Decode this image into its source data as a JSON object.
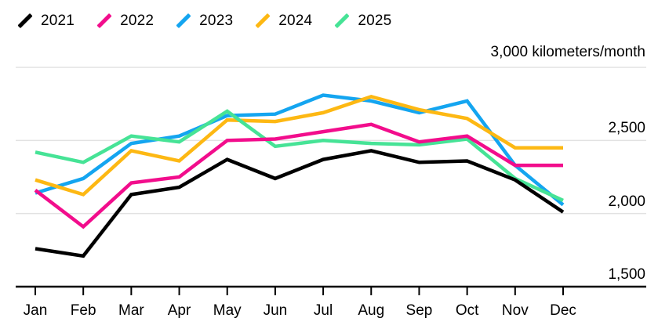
{
  "chart_data": {
    "type": "line",
    "title": "",
    "y_top_label": "3,000 kilometers/month",
    "y_tick_labels": [
      "2,500",
      "2,000",
      "1,500"
    ],
    "y_axis": {
      "min": 1500,
      "max": 3000,
      "gridline_values": [
        3000,
        2500,
        2000,
        1500
      ],
      "grid_on": true
    },
    "legend_position": "top-left",
    "categories": [
      "Jan",
      "Feb",
      "Mar",
      "Apr",
      "May",
      "Jun",
      "Jul",
      "Aug",
      "Sep",
      "Oct",
      "Nov",
      "Dec"
    ],
    "series": [
      {
        "name": "2021",
        "color": "#000000",
        "values": [
          1760,
          1710,
          2130,
          2180,
          2370,
          2240,
          2370,
          2430,
          2350,
          2360,
          2230,
          2010
        ]
      },
      {
        "name": "2022",
        "color": "#f20d8c",
        "values": [
          2160,
          1910,
          2210,
          2250,
          2500,
          2510,
          2560,
          2610,
          2490,
          2530,
          2330,
          2330
        ]
      },
      {
        "name": "2023",
        "color": "#14a5f0",
        "values": [
          2140,
          2240,
          2480,
          2530,
          2670,
          2680,
          2810,
          2770,
          2690,
          2770,
          2330,
          2060
        ]
      },
      {
        "name": "2024",
        "color": "#fdb813",
        "values": [
          2230,
          2130,
          2430,
          2360,
          2640,
          2630,
          2690,
          2800,
          2710,
          2650,
          2450,
          2450
        ]
      },
      {
        "name": "2025",
        "color": "#46e396",
        "values": [
          2420,
          2350,
          2530,
          2490,
          2700,
          2460,
          2500,
          2480,
          2470,
          2510,
          2240,
          2090
        ]
      }
    ],
    "draw_order": [
      "2023",
      "2024",
      "2025",
      "2022",
      "2021"
    ],
    "style": {
      "grid_color": "#e2e2e2",
      "axis_color": "#000000",
      "line_width": 4.5
    }
  }
}
